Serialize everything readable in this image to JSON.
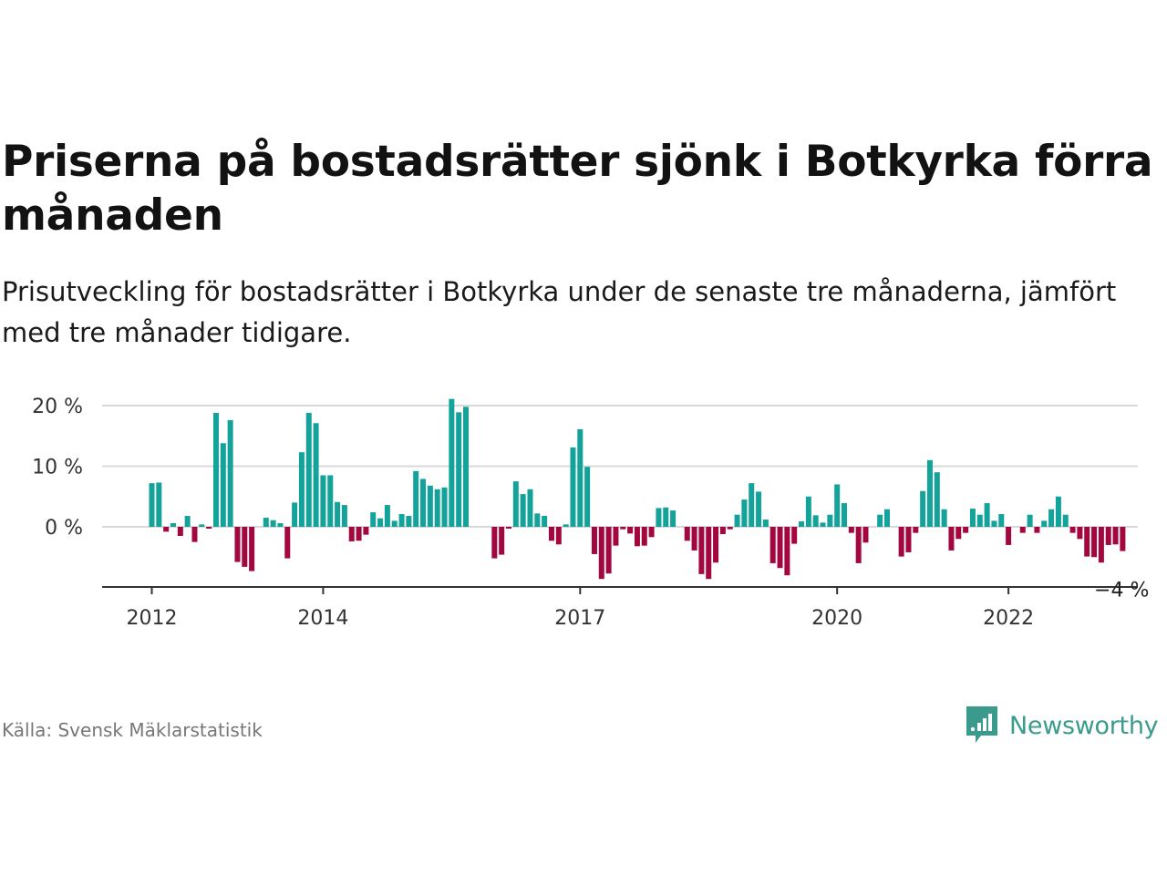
{
  "title": "Priserna på bostadsrätter sjönk i Botkyrka förra månaden",
  "subtitle": "Prisutveckling för bostadsrätter i Botkyrka under de senaste tre månaderna, jämfört med tre månader tidigare.",
  "source": "Källa: Svensk Mäklarstatistik",
  "logo_text": "Newsworthy",
  "colors": {
    "positive": "#14a39a",
    "negative": "#a3073f",
    "grid": "#d9d9d9",
    "axis": "#333333",
    "logo": "#3a9b8c"
  },
  "chart_data": {
    "type": "bar",
    "x_start": "2012-01",
    "x_tick_labels": [
      "2012",
      "2014",
      "2017",
      "2020",
      "2022"
    ],
    "x_tick_months": [
      "2012-01",
      "2014-01",
      "2017-01",
      "2020-01",
      "2022-01"
    ],
    "y_tick_labels": [
      "20 %",
      "10 %",
      "0 %"
    ],
    "y_ticks": [
      20,
      10,
      0
    ],
    "ylim": [
      -10,
      21
    ],
    "grid": true,
    "last_label": "−4 %",
    "values": [
      7.2,
      7.3,
      -0.8,
      0.6,
      -1.5,
      1.8,
      -2.5,
      0.4,
      -0.3,
      18.8,
      13.8,
      17.6,
      -5.8,
      -6.6,
      -7.3,
      0,
      1.5,
      1.1,
      0.6,
      -5.2,
      4.0,
      12.3,
      18.8,
      17.1,
      8.5,
      8.5,
      4.1,
      3.6,
      -2.4,
      -2.3,
      -1.3,
      2.4,
      1.4,
      3.6,
      1.0,
      2.1,
      1.8,
      9.2,
      7.9,
      6.8,
      6.2,
      6.5,
      21.1,
      18.9,
      19.8,
      0,
      0,
      0,
      -5.2,
      -4.6,
      -0.3,
      7.5,
      5.4,
      6.2,
      2.2,
      1.8,
      -2.3,
      -2.9,
      0.4,
      13.1,
      16.1,
      9.9,
      -4.5,
      -8.6,
      -7.7,
      -3.1,
      -0.4,
      -1.1,
      -3.2,
      -3.1,
      -1.7,
      3.1,
      3.2,
      2.7,
      0,
      -2.3,
      -3.9,
      -7.8,
      -8.6,
      -5.9,
      -1.2,
      -0.4,
      2.0,
      4.5,
      7.2,
      5.8,
      1.2,
      -6.0,
      -6.8,
      -8.0,
      -2.8,
      0.9,
      5.0,
      1.9,
      0.7,
      2.0,
      7.0,
      3.9,
      -1.0,
      -6.0,
      -2.6,
      0,
      2.0,
      2.9,
      0,
      -4.9,
      -4.2,
      -1.0,
      5.9,
      11.0,
      9.0,
      2.9,
      -3.9,
      -2.0,
      -1.0,
      3.0,
      2.0,
      3.9,
      1.0,
      2.1,
      -3.0,
      0,
      -1.0,
      2.0,
      -1.0,
      1.0,
      2.9,
      5.0,
      2.0,
      -1.0,
      -2.0,
      -4.9,
      -5.0,
      -5.9,
      -3.0,
      -2.9,
      -4.0
    ]
  }
}
